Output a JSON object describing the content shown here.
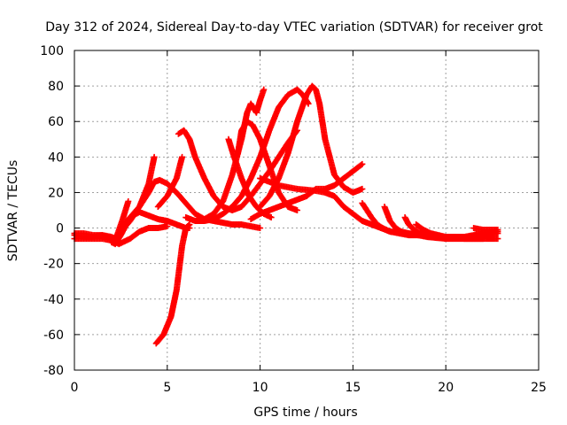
{
  "chart_data": {
    "type": "scatter",
    "title": "Day 312 of 2024, Sidereal Day-to-day VTEC variation (SDTVAR) for receiver grot",
    "xlabel": "GPS time / hours",
    "ylabel": "SDTVAR / TECUs",
    "xlim": [
      0,
      25
    ],
    "ylim": [
      -80,
      100
    ],
    "xticks": [
      0,
      5,
      10,
      15,
      20,
      25
    ],
    "yticks": [
      -80,
      -60,
      -40,
      -20,
      0,
      20,
      40,
      60,
      80,
      100
    ],
    "xtick_labels": [
      "0",
      "5",
      "10",
      "15",
      "20",
      "25"
    ],
    "ytick_labels": [
      "-80",
      "-60",
      "-40",
      "-20",
      "0",
      "20",
      "40",
      "60",
      "80",
      "100"
    ],
    "grid": true,
    "legend": "none",
    "marker": "plus",
    "series_color": "#ff0000",
    "series": [
      {
        "x": [
          0.0,
          0.5,
          1.0,
          1.5,
          2.0,
          2.2,
          2.5,
          3.0,
          3.5,
          4.0,
          4.3
        ],
        "y": [
          -4,
          -5,
          -5,
          -4,
          -5,
          -6,
          -2,
          4,
          12,
          25,
          40
        ]
      },
      {
        "x": [
          0.0,
          0.5,
          1.0,
          1.5,
          2.0,
          2.3,
          2.6,
          2.9
        ],
        "y": [
          -6,
          -6,
          -6,
          -6,
          -7,
          -4,
          5,
          15
        ]
      },
      {
        "x": [
          0.0,
          0.5,
          1.0,
          1.5,
          2.0,
          2.2,
          2.4,
          3.0,
          3.5,
          4.0,
          4.5,
          5.0
        ],
        "y": [
          -3,
          -3,
          -4,
          -4,
          -6,
          -8,
          -9,
          -6,
          -2,
          0,
          0,
          1
        ]
      },
      {
        "x": [
          2.0,
          2.2,
          2.5,
          3.0,
          3.5,
          4.0,
          4.5,
          5.0,
          5.5,
          6.0,
          6.2
        ],
        "y": [
          -8,
          -9,
          -4,
          6,
          9,
          7,
          5,
          4,
          2,
          0,
          0
        ]
      },
      {
        "x": [
          2.5,
          3.0,
          3.5,
          4.0,
          4.3,
          4.6,
          5.0,
          5.5,
          6.0,
          6.5,
          7.0,
          7.5,
          8.0,
          8.5,
          9.0,
          9.5,
          10.0
        ],
        "y": [
          0,
          6,
          12,
          20,
          26,
          27,
          25,
          20,
          14,
          8,
          5,
          4,
          3,
          2,
          2,
          1,
          0
        ]
      },
      {
        "x": [
          4.5,
          5.0,
          5.5,
          5.8
        ],
        "y": [
          12,
          18,
          28,
          40
        ]
      },
      {
        "x": [
          4.4,
          4.8,
          5.2,
          5.5,
          5.8,
          6.0,
          6.2
        ],
        "y": [
          -65,
          -60,
          -50,
          -35,
          -10,
          0,
          2
        ]
      },
      {
        "x": [
          5.6,
          5.9,
          6.2,
          6.5,
          7.0,
          7.5,
          8.0,
          8.5,
          9.0,
          9.5,
          10.0,
          10.5,
          11.0,
          11.5,
          12.0
        ],
        "y": [
          53,
          55,
          50,
          40,
          28,
          18,
          12,
          10,
          12,
          18,
          25,
          32,
          40,
          48,
          55
        ]
      },
      {
        "x": [
          7.0,
          7.5,
          8.0,
          8.5,
          9.0,
          9.3,
          9.5,
          9.8,
          10.0,
          10.2
        ],
        "y": [
          5,
          8,
          15,
          30,
          50,
          65,
          70,
          65,
          72,
          78
        ]
      },
      {
        "x": [
          6.0,
          6.5,
          7.0,
          7.5,
          8.0,
          8.5,
          9.0,
          9.5,
          10.0,
          10.5,
          11.0,
          11.5,
          12.0,
          12.3,
          12.6
        ],
        "y": [
          6,
          4,
          4,
          5,
          8,
          12,
          18,
          28,
          40,
          55,
          68,
          75,
          78,
          75,
          70
        ]
      },
      {
        "x": [
          8.3,
          8.6,
          9.0,
          9.4,
          9.8,
          10.2,
          10.6
        ],
        "y": [
          50,
          40,
          28,
          18,
          12,
          8,
          6
        ]
      },
      {
        "x": [
          8.8,
          9.0,
          9.3,
          9.6,
          10.0,
          10.5,
          11.0,
          11.5,
          12.0
        ],
        "y": [
          42,
          55,
          60,
          58,
          50,
          35,
          20,
          12,
          10
        ]
      },
      {
        "x": [
          10.0,
          10.5,
          11.0,
          11.5,
          12.0,
          12.5,
          12.8,
          13.0,
          13.2,
          13.5,
          14.0,
          14.5,
          15.0,
          15.5
        ],
        "y": [
          12,
          18,
          28,
          42,
          60,
          75,
          80,
          78,
          70,
          50,
          30,
          23,
          20,
          22
        ]
      },
      {
        "x": [
          9.5,
          10.0,
          10.5,
          11.0,
          11.5,
          12.0,
          12.5,
          13.0,
          13.5,
          14.0,
          14.5,
          15.0,
          15.5
        ],
        "y": [
          5,
          8,
          10,
          12,
          14,
          16,
          18,
          22,
          22,
          24,
          28,
          32,
          36
        ]
      },
      {
        "x": [
          10.0,
          11.0,
          12.0,
          13.0,
          13.5,
          14.0,
          14.5,
          15.0,
          15.5,
          16.0,
          16.5,
          17.0,
          18.0,
          19.0,
          20.0,
          21.0,
          22.0,
          22.8
        ],
        "y": [
          28,
          24,
          22,
          21,
          20,
          18,
          12,
          8,
          4,
          2,
          0,
          -2,
          -3,
          -4,
          -5,
          -5,
          -3,
          -2
        ]
      },
      {
        "x": [
          15.5,
          16.0,
          16.3,
          16.6,
          17.0,
          17.5,
          18.0,
          19.0,
          20.0,
          21.0,
          22.0,
          22.8
        ],
        "y": [
          14,
          6,
          2,
          0,
          -2,
          -3,
          -4,
          -4,
          -5,
          -5,
          -4,
          -3
        ]
      },
      {
        "x": [
          16.7,
          17.0,
          17.3,
          17.6,
          18.0,
          18.5,
          19.0,
          20.0,
          21.0,
          22.0
        ],
        "y": [
          12,
          4,
          0,
          -2,
          -3,
          -4,
          -5,
          -6,
          -6,
          -6
        ]
      },
      {
        "x": [
          17.8,
          18.0,
          18.3,
          18.6,
          19.0,
          19.5,
          20.0,
          21.0,
          22.0,
          22.8
        ],
        "y": [
          6,
          2,
          -1,
          -3,
          -4,
          -5,
          -5,
          -6,
          -6,
          -6
        ]
      },
      {
        "x": [
          18.4,
          18.8,
          19.2,
          19.6,
          20.0,
          20.5
        ],
        "y": [
          2,
          -1,
          -3,
          -4,
          -5,
          -5
        ]
      },
      {
        "x": [
          21.5,
          22.0,
          22.5,
          22.8
        ],
        "y": [
          0,
          -1,
          -1,
          -1
        ]
      }
    ]
  }
}
